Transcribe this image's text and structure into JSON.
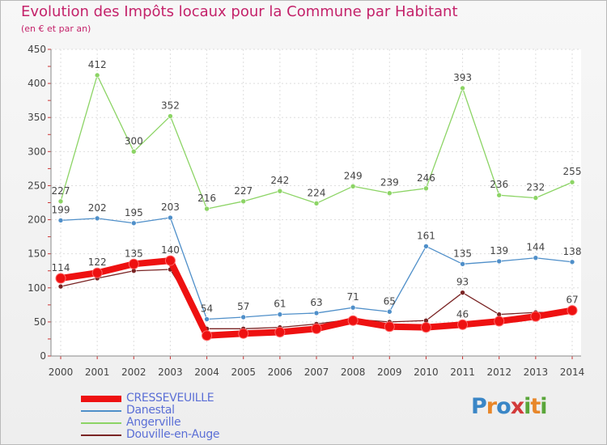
{
  "header": {
    "title": "Evolution des Impôts locaux pour la Commune par Habitant",
    "subtitle": "(en € et par an)"
  },
  "logo": {
    "letters": [
      "P",
      "r",
      "o",
      "x",
      "i",
      "t",
      "i"
    ],
    "colors": [
      "#3a86c6",
      "#e8872a",
      "#3a86c6",
      "#d23a3a",
      "#5aa63a",
      "#e8872a",
      "#5aa63a"
    ]
  },
  "chart_data": {
    "type": "line",
    "title": "Evolution des Impôts locaux pour la Commune par Habitant",
    "subtitle": "(en € et par an)",
    "x": [
      "2000",
      "2001",
      "2002",
      "2003",
      "2004",
      "2005",
      "2006",
      "2007",
      "2008",
      "2009",
      "2010",
      "2011",
      "2012",
      "2013",
      "2014"
    ],
    "ylim": [
      0,
      450
    ],
    "yticks": [
      0,
      50,
      100,
      150,
      200,
      250,
      300,
      350,
      400,
      450
    ],
    "grid": true,
    "legend_position": "bottom-left",
    "series": [
      {
        "name": "CRESSEVEUILLE",
        "color": "#ee1111",
        "values": [
          114,
          122,
          135,
          140,
          30,
          33,
          35,
          40,
          52,
          43,
          42,
          46,
          51,
          58,
          67
        ],
        "labels": [
          "114",
          "122",
          "135",
          "140",
          "",
          "",
          "",
          "",
          "",
          "",
          "",
          "46",
          "",
          "",
          "67"
        ]
      },
      {
        "name": "Danestal",
        "color": "#4f8fc9",
        "values": [
          199,
          202,
          195,
          203,
          54,
          57,
          61,
          63,
          71,
          65,
          161,
          135,
          139,
          144,
          138
        ],
        "labels": [
          "199",
          "202",
          "195",
          "203",
          "54",
          "57",
          "61",
          "63",
          "71",
          "65",
          "161",
          "135",
          "139",
          "144",
          "138"
        ]
      },
      {
        "name": "Angerville",
        "color": "#8cd465",
        "values": [
          227,
          412,
          300,
          352,
          216,
          227,
          242,
          224,
          249,
          239,
          246,
          393,
          236,
          232,
          255
        ],
        "labels": [
          "227",
          "412",
          "300",
          "352",
          "216",
          "227",
          "242",
          "224",
          "249",
          "239",
          "246",
          "393",
          "236",
          "232",
          "255"
        ]
      },
      {
        "name": "Douville-en-Auge",
        "color": "#7a2424",
        "values": [
          102,
          114,
          125,
          127,
          40,
          40,
          42,
          47,
          54,
          50,
          52,
          93,
          61,
          64,
          64
        ],
        "labels": [
          "",
          "",
          "",
          "",
          "",
          "",
          "",
          "",
          "",
          "",
          "",
          "93",
          "",
          "",
          ""
        ]
      }
    ]
  }
}
